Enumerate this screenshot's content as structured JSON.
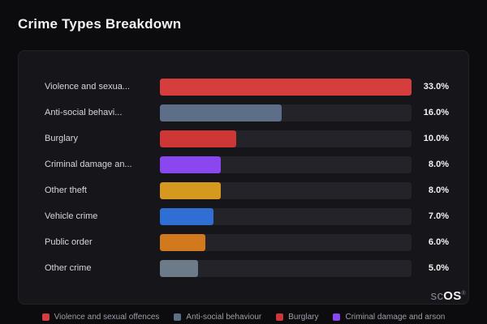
{
  "page": {
    "title": "Crime Types Breakdown"
  },
  "brand": {
    "prefix": "sc",
    "name": "OS",
    "registered_mark": "®"
  },
  "chart_data": {
    "type": "bar",
    "orientation": "horizontal",
    "title": "Crime Types Breakdown",
    "xlabel": "",
    "ylabel": "",
    "max_value": 33,
    "value_suffix": "%",
    "grid": false,
    "legend_position": "bottom",
    "bars": [
      {
        "label": "Violence and sexua...",
        "value": 33.0,
        "display": "33.0%",
        "color": "#d63d3d"
      },
      {
        "label": "Anti-social behavi...",
        "value": 16.0,
        "display": "16.0%",
        "color": "#5d6f88"
      },
      {
        "label": "Burglary",
        "value": 10.0,
        "display": "10.0%",
        "color": "#cf3636"
      },
      {
        "label": "Criminal damage an...",
        "value": 8.0,
        "display": "8.0%",
        "color": "#8a46ef"
      },
      {
        "label": "Other theft",
        "value": 8.0,
        "display": "8.0%",
        "color": "#d6991f"
      },
      {
        "label": "Vehicle crime",
        "value": 7.0,
        "display": "7.0%",
        "color": "#2f6fd4"
      },
      {
        "label": "Public order",
        "value": 6.0,
        "display": "6.0%",
        "color": "#d2791d"
      },
      {
        "label": "Other crime",
        "value": 5.0,
        "display": "5.0%",
        "color": "#6d7a8a"
      }
    ],
    "legend": [
      {
        "label": "Violence and sexual offences",
        "color": "#d63d3d"
      },
      {
        "label": "Anti-social behaviour",
        "color": "#5d6f88"
      },
      {
        "label": "Burglary",
        "color": "#cf3636"
      },
      {
        "label": "Criminal damage and arson",
        "color": "#8a46ef"
      }
    ]
  }
}
